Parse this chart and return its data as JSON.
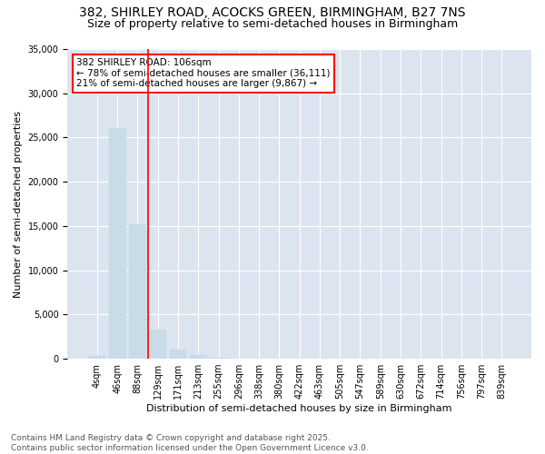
{
  "title_line1": "382, SHIRLEY ROAD, ACOCKS GREEN, BIRMINGHAM, B27 7NS",
  "title_line2": "Size of property relative to semi-detached houses in Birmingham",
  "xlabel": "Distribution of semi-detached houses by size in Birmingham",
  "ylabel": "Number of semi-detached properties",
  "categories": [
    "4sqm",
    "46sqm",
    "88sqm",
    "129sqm",
    "171sqm",
    "213sqm",
    "255sqm",
    "296sqm",
    "338sqm",
    "380sqm",
    "422sqm",
    "463sqm",
    "505sqm",
    "547sqm",
    "589sqm",
    "630sqm",
    "672sqm",
    "714sqm",
    "756sqm",
    "797sqm",
    "839sqm"
  ],
  "values": [
    350,
    26100,
    15200,
    3300,
    1050,
    450,
    130,
    0,
    0,
    0,
    0,
    0,
    0,
    0,
    0,
    0,
    0,
    0,
    0,
    0,
    0
  ],
  "bar_color": "#c8dce8",
  "bar_edgecolor": "#c8dce8",
  "vline_x": 2.5,
  "vline_color": "red",
  "annotation_title": "382 SHIRLEY ROAD: 106sqm",
  "annotation_line1": "← 78% of semi-detached houses are smaller (36,111)",
  "annotation_line2": "21% of semi-detached houses are larger (9,867) →",
  "annotation_box_facecolor": "white",
  "annotation_box_edgecolor": "red",
  "ylim": [
    0,
    35000
  ],
  "yticks": [
    0,
    5000,
    10000,
    15000,
    20000,
    25000,
    30000,
    35000
  ],
  "axes_background": "#dce4f0",
  "footer_line1": "Contains HM Land Registry data © Crown copyright and database right 2025.",
  "footer_line2": "Contains public sector information licensed under the Open Government Licence v3.0.",
  "title_fontsize": 10,
  "subtitle_fontsize": 9,
  "axis_label_fontsize": 8,
  "tick_fontsize": 7,
  "annotation_fontsize": 7.5,
  "footer_fontsize": 6.5
}
